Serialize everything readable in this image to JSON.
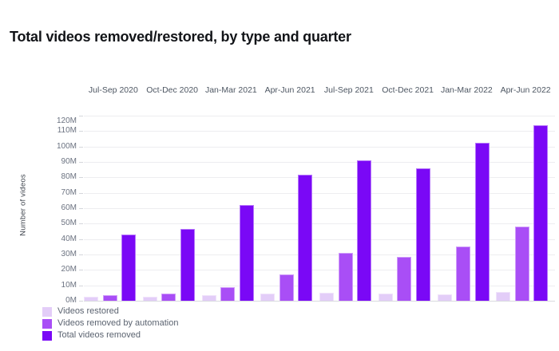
{
  "header": {
    "title": "Total videos removed/restored, by type and quarter"
  },
  "chart_data": {
    "type": "bar",
    "title": "Total videos removed/restored, by type and quarter",
    "categories": [
      "Jul-Sep 2020",
      "Oct-Dec 2020",
      "Jan-Mar 2021",
      "Apr-Jun 2021",
      "Jul-Sep 2021",
      "Oct-Dec 2021",
      "Jan-Mar 2022",
      "Apr-Jun 2022"
    ],
    "series": [
      {
        "name": "Videos restored",
        "color": "#e3cdf8",
        "values": [
          2.4,
          2.7,
          3.4,
          4.6,
          5.2,
          4.6,
          4.3,
          5.8
        ]
      },
      {
        "name": "Videos removed by automation",
        "color": "#a94ef6",
        "values": [
          3.5,
          4.7,
          8.9,
          16.9,
          31.3,
          28.2,
          35,
          48
        ]
      },
      {
        "name": "Total videos removed",
        "color": "#7a08f6",
        "values": [
          43,
          46.5,
          62,
          81.5,
          91,
          85.8,
          102.3,
          113.8
        ]
      }
    ],
    "values_in": "millions",
    "unit": "M",
    "xlabel": "",
    "ylabel": "Number of videos",
    "ylim": [
      0,
      120
    ],
    "ytick_step": 10,
    "ytick_labels": [
      "0M",
      "10M",
      "20M",
      "30M",
      "40M",
      "50M",
      "60M",
      "70M",
      "80M",
      "90M",
      "100M",
      "110M",
      "120M"
    ],
    "grid": true,
    "legend_position": "bottom-left",
    "colors": {
      "title_text": "#121418",
      "axis_text": "#6b7280",
      "category_text": "#4d5662",
      "gridline": "#ededf0",
      "baseline": "#d8dade"
    }
  }
}
